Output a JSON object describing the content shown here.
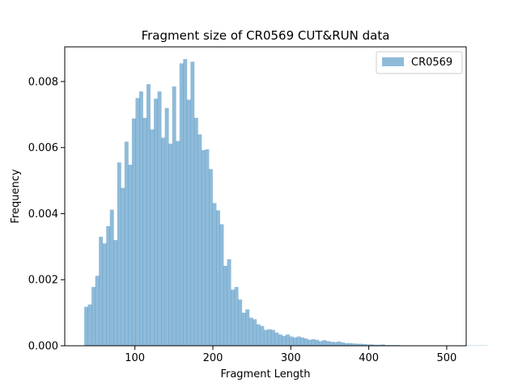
{
  "chart_data": {
    "type": "bar",
    "title": "Fragment size of CR0569 CUT&RUN data",
    "xlabel": "Fragment Length",
    "ylabel": "Frequency",
    "xlim": [
      10,
      525
    ],
    "ylim": [
      0,
      0.00905
    ],
    "xticks": [
      100,
      200,
      300,
      400,
      500
    ],
    "xtick_labels": [
      "100",
      "200",
      "300",
      "400",
      "500"
    ],
    "yticks": [
      0,
      0.002,
      0.004,
      0.006,
      0.008
    ],
    "ytick_labels": [
      "0.000",
      "0.002",
      "0.004",
      "0.006",
      "0.008"
    ],
    "legend": {
      "position": "top-right",
      "label": "CR0569"
    },
    "grid": false,
    "colors": {
      "bar": "#1f77b4",
      "bar_alpha": 0.5
    },
    "bin_width": 4.7,
    "series": [
      {
        "name": "CR0569",
        "bin_start": 35,
        "values": [
          0.00118,
          0.00125,
          0.00178,
          0.00212,
          0.0033,
          0.0031,
          0.00362,
          0.00412,
          0.0032,
          0.00555,
          0.00478,
          0.00618,
          0.00548,
          0.00688,
          0.0075,
          0.0077,
          0.0069,
          0.00792,
          0.00655,
          0.00748,
          0.0077,
          0.0063,
          0.0072,
          0.00612,
          0.00785,
          0.0062,
          0.00855,
          0.00868,
          0.00745,
          0.0086,
          0.0069,
          0.0064,
          0.00592,
          0.00595,
          0.00535,
          0.00432,
          0.0041,
          0.00368,
          0.00242,
          0.00262,
          0.0017,
          0.00178,
          0.0014,
          0.001,
          0.0011,
          0.00085,
          0.0008,
          0.00065,
          0.0006,
          0.00048,
          0.0005,
          0.00048,
          0.0004,
          0.00034,
          0.0003,
          0.00034,
          0.00028,
          0.00025,
          0.00028,
          0.00025,
          0.00022,
          0.00018,
          0.0002,
          0.00018,
          0.00014,
          0.00017,
          0.00014,
          0.00012,
          0.00011,
          0.00013,
          0.0001,
          8e-05,
          8e-05,
          7e-05,
          6e-05,
          6e-05,
          5e-05,
          4e-05,
          4e-05,
          3e-05,
          3e-05,
          4e-05,
          2e-05,
          2e-05,
          2e-05,
          2e-05,
          1e-05,
          1e-05,
          1e-05,
          1e-05,
          1e-05,
          1e-05,
          1e-05,
          1e-05,
          1e-05,
          1e-05,
          1e-05,
          1e-05,
          1e-05,
          1e-05,
          1e-05,
          1e-05,
          1e-05,
          1e-05,
          1e-05,
          1e-05,
          1e-05,
          1e-05,
          1e-05,
          1e-05
        ]
      }
    ]
  }
}
